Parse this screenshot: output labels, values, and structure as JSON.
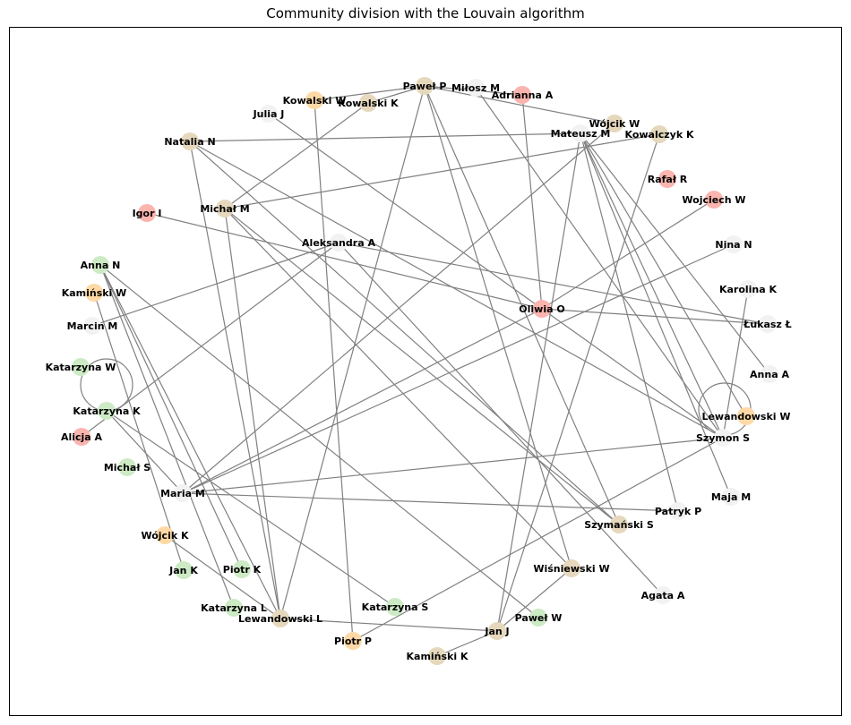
{
  "title": "Community division with the Louvain algorithm",
  "colors": {
    "c0": "#fbb4ae",
    "c1": "#ccebc5",
    "c2": "#fed9a6",
    "c3": "#e5d8bd",
    "c4": "#f2f2f2",
    "edge": "#808080"
  },
  "nodes": [
    {
      "id": "Paweł P",
      "c": "c3"
    },
    {
      "id": "Miłosz M",
      "c": "c4"
    },
    {
      "id": "Adrianna A",
      "c": "c0"
    },
    {
      "id": "Kowalski W",
      "c": "c2"
    },
    {
      "id": "Kowalski K",
      "c": "c3"
    },
    {
      "id": "Julia J",
      "c": "c4"
    },
    {
      "id": "Wójcik W",
      "c": "c3"
    },
    {
      "id": "Mateusz M",
      "c": "c4"
    },
    {
      "id": "Kowalczyk K",
      "c": "c3"
    },
    {
      "id": "Natalia N",
      "c": "c3"
    },
    {
      "id": "Rafał R",
      "c": "c0"
    },
    {
      "id": "Wojciech W",
      "c": "c0"
    },
    {
      "id": "Igor I",
      "c": "c0"
    },
    {
      "id": "Michał M",
      "c": "c3"
    },
    {
      "id": "Aleksandra A",
      "c": "c4"
    },
    {
      "id": "Nina N",
      "c": "c4"
    },
    {
      "id": "Anna N",
      "c": "c1"
    },
    {
      "id": "Karolina K",
      "c": "c4"
    },
    {
      "id": "Kamiński W",
      "c": "c2"
    },
    {
      "id": "Oliwia O",
      "c": "c0"
    },
    {
      "id": "Marcin M",
      "c": "c4"
    },
    {
      "id": "Łukasz Ł",
      "c": "c4"
    },
    {
      "id": "Katarzyna W",
      "c": "c1"
    },
    {
      "id": "Anna A",
      "c": "c4"
    },
    {
      "id": "Katarzyna K",
      "c": "c1"
    },
    {
      "id": "Lewandowski W",
      "c": "c2"
    },
    {
      "id": "Alicja A",
      "c": "c0"
    },
    {
      "id": "Szymon S",
      "c": "c4"
    },
    {
      "id": "Michał S",
      "c": "c1"
    },
    {
      "id": "Maria M",
      "c": "c4"
    },
    {
      "id": "Maja M",
      "c": "c4"
    },
    {
      "id": "Patryk P",
      "c": "c4"
    },
    {
      "id": "Szymański S",
      "c": "c3"
    },
    {
      "id": "Wójcik K",
      "c": "c2"
    },
    {
      "id": "Jan K",
      "c": "c1"
    },
    {
      "id": "Piotr K",
      "c": "c1"
    },
    {
      "id": "Wiśniewski W",
      "c": "c3"
    },
    {
      "id": "Agata A",
      "c": "c4"
    },
    {
      "id": "Katarzyna S",
      "c": "c1"
    },
    {
      "id": "Katarzyna L",
      "c": "c1"
    },
    {
      "id": "Paweł W",
      "c": "c1"
    },
    {
      "id": "Lewandowski L",
      "c": "c3"
    },
    {
      "id": "Jan J",
      "c": "c3"
    },
    {
      "id": "Piotr P",
      "c": "c2"
    },
    {
      "id": "Kamiński K",
      "c": "c3"
    }
  ],
  "edges": [
    [
      "Paweł P",
      "Kowalski W"
    ],
    [
      "Paweł P",
      "Kowalski K"
    ],
    [
      "Paweł P",
      "Adrianna A"
    ],
    [
      "Paweł P",
      "Lewandowski L"
    ],
    [
      "Paweł P",
      "Wiśniewski W"
    ],
    [
      "Paweł P",
      "Szymański S"
    ],
    [
      "Paweł P",
      "Wójcik W"
    ],
    [
      "Miłosz M",
      "Szymon S"
    ],
    [
      "Adrianna A",
      "Oliwia O"
    ],
    [
      "Kowalski W",
      "Piotr P"
    ],
    [
      "Kowalski K",
      "Michał M"
    ],
    [
      "Julia J",
      "Oliwia O"
    ],
    [
      "Wójcik W",
      "Maria M"
    ],
    [
      "Mateusz M",
      "Natalia N"
    ],
    [
      "Mateusz M",
      "Patryk P"
    ],
    [
      "Mateusz M",
      "Maja M"
    ],
    [
      "Mateusz M",
      "Szymon S"
    ],
    [
      "Mateusz M",
      "Anna A"
    ],
    [
      "Mateusz M",
      "Lewandowski W"
    ],
    [
      "Mateusz M",
      "Jan J"
    ],
    [
      "Kowalczyk K",
      "Michał M"
    ],
    [
      "Kowalczyk K",
      "Jan J"
    ],
    [
      "Natalia N",
      "Szymański S"
    ],
    [
      "Natalia N",
      "Lewandowski L"
    ],
    [
      "Natalia N",
      "Szymon S"
    ],
    [
      "Wojciech W",
      "Oliwia O"
    ],
    [
      "Igor I",
      "Oliwia O"
    ],
    [
      "Michał M",
      "Lewandowski L"
    ],
    [
      "Michał M",
      "Wiśniewski W"
    ],
    [
      "Michał M",
      "Szymański S"
    ],
    [
      "Aleksandra A",
      "Marcin M"
    ],
    [
      "Aleksandra A",
      "Łukasz Ł"
    ],
    [
      "Aleksandra A",
      "Alicja A"
    ],
    [
      "Aleksandra A",
      "Agata A"
    ],
    [
      "Nina N",
      "Maria M"
    ],
    [
      "Anna N",
      "Paweł W"
    ],
    [
      "Anna N",
      "Piotr K"
    ],
    [
      "Anna N",
      "Katarzyna L"
    ],
    [
      "Anna N",
      "Lewandowski L"
    ],
    [
      "Karolina K",
      "Szymon S"
    ],
    [
      "Kamiński W",
      "Jan K"
    ],
    [
      "Oliwia O",
      "Maria M"
    ],
    [
      "Oliwia O",
      "Łukasz Ł"
    ],
    [
      "Oliwia O",
      "Szymon S"
    ],
    [
      "Katarzyna K",
      "Katarzyna S"
    ],
    [
      "Katarzyna K",
      "Maria M"
    ],
    [
      "Szymon S",
      "Maria M"
    ],
    [
      "Szymon S",
      "Piotr P"
    ],
    [
      "Maria M",
      "Patryk P"
    ],
    [
      "Wójcik K",
      "Lewandowski L"
    ],
    [
      "Lewandowski L",
      "Jan J"
    ],
    [
      "Jan J",
      "Wiśniewski W"
    ],
    [
      "Jan J",
      "Kamiński K"
    ]
  ],
  "self_loops": [
    "Katarzyna W",
    "Lewandowski W"
  ]
}
